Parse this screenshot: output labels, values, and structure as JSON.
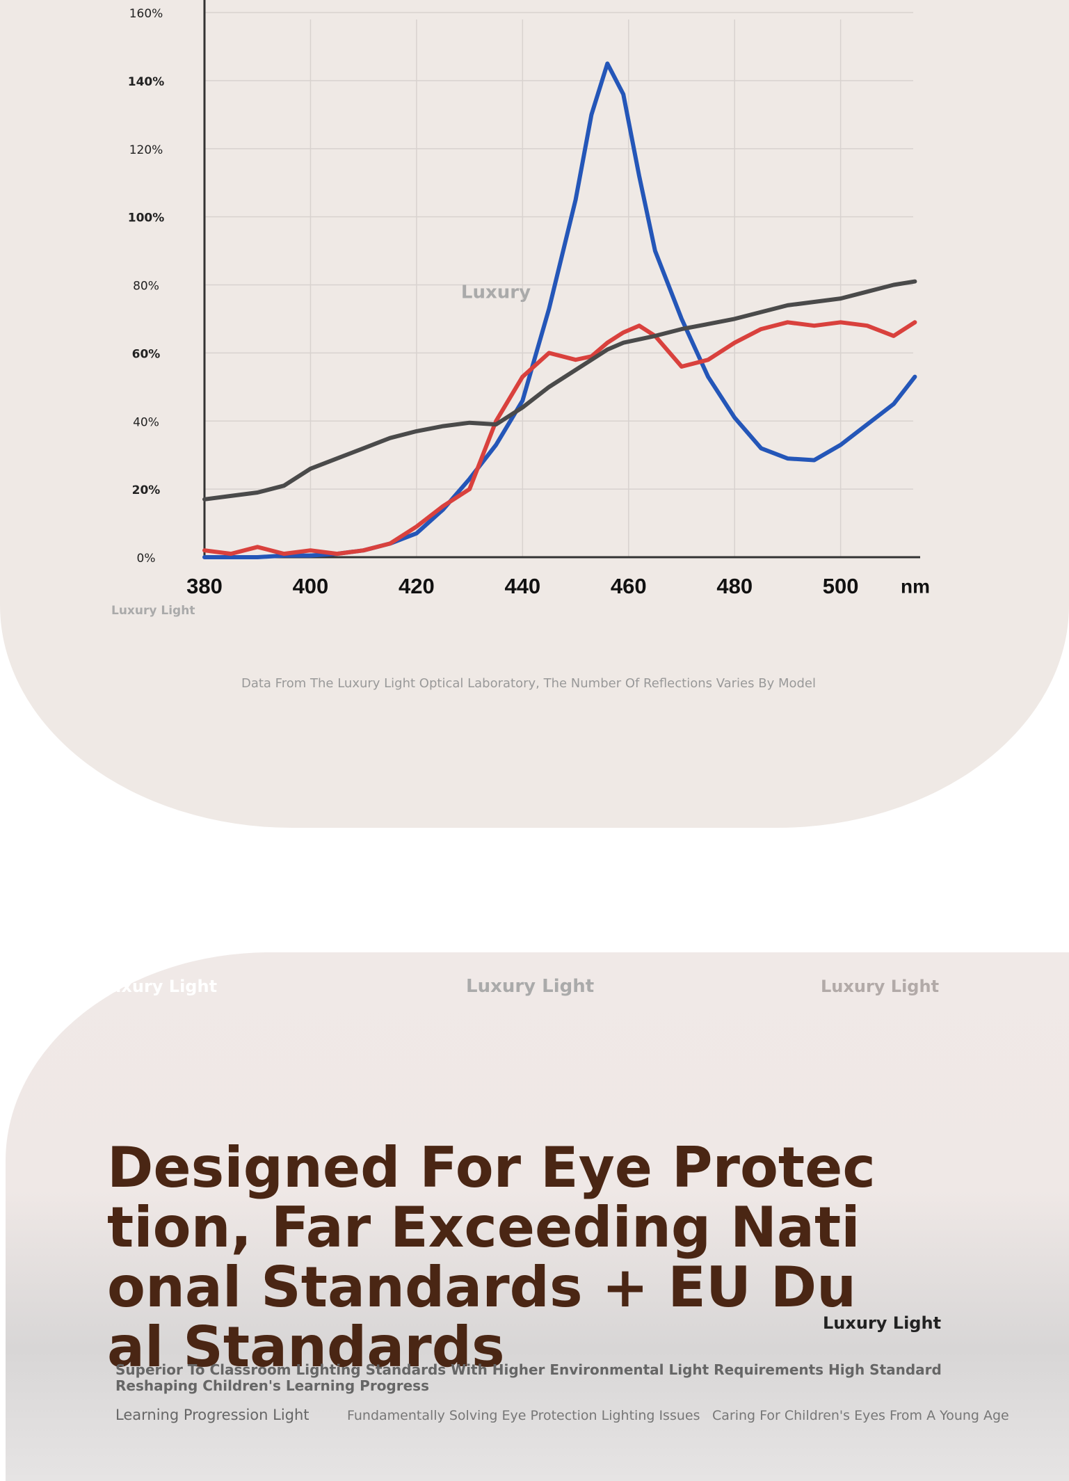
{
  "chart_data": {
    "type": "line",
    "x": [
      380,
      385,
      390,
      395,
      400,
      405,
      410,
      415,
      420,
      425,
      430,
      435,
      440,
      445,
      450,
      453,
      456,
      459,
      462,
      465,
      470,
      475,
      480,
      485,
      490,
      495,
      500,
      505,
      510,
      514
    ],
    "series": [
      {
        "color": "#2456b8",
        "values": [
          0,
          0,
          0,
          0.5,
          0.5,
          1,
          2,
          4,
          7,
          14,
          23,
          33,
          46,
          73,
          105,
          130,
          145,
          136,
          112,
          90,
          70,
          53,
          41,
          32,
          29,
          28.5,
          33,
          39,
          45,
          53
        ]
      },
      {
        "color": "#d9413d",
        "values": [
          2,
          1,
          3,
          1,
          2,
          1,
          2,
          4,
          9,
          15,
          20,
          40,
          53,
          60,
          58,
          59,
          63,
          66,
          68,
          65,
          56,
          58,
          63,
          67,
          69,
          68,
          69,
          68,
          65,
          69
        ]
      },
      {
        "color": "#4a4a4a",
        "values": [
          17,
          18,
          19,
          21,
          26,
          29,
          32,
          35,
          37,
          38.5,
          39.5,
          39,
          44,
          50,
          55,
          58,
          61,
          63,
          64,
          65,
          67,
          68.5,
          70,
          72,
          74,
          75,
          76,
          78,
          80,
          81
        ]
      }
    ],
    "xlim": [
      380,
      515
    ],
    "ylim": [
      0,
      160
    ],
    "xticks": [
      380,
      400,
      420,
      440,
      460,
      480,
      500
    ],
    "x_unit": "nm",
    "yticks": [
      {
        "value": 0,
        "label": "0%"
      },
      {
        "value": 20,
        "label": "20%"
      },
      {
        "value": 40,
        "label": "40%"
      },
      {
        "value": 60,
        "label": "60%"
      },
      {
        "value": 80,
        "label": "80%"
      },
      {
        "value": 100,
        "label": "100%"
      },
      {
        "value": 120,
        "label": "120%"
      },
      {
        "value": 140,
        "label": "140%"
      },
      {
        "value": 160,
        "label": "160%"
      }
    ],
    "grid": true,
    "watermark": "Luxury",
    "brand": "Luxury Light",
    "caption": "Data From The Luxury Light Optical Laboratory, The Number Of Reflections Varies By Model"
  },
  "section": {
    "brands": [
      "Luxury Light",
      "Luxury Light",
      "Luxury Light",
      "Luxury Light"
    ],
    "title": "Designed For Eye Protection, Far Exceeding National Standards + EU Dual Standards",
    "subtitle": "Superior To Classroom Lighting Standards With Higher Environmental Light Requirements High Standard Reshaping Children's Learning Progress",
    "features": [
      "Learning Progression Light",
      "Fundamentally Solving Eye Protection Lighting Issues",
      "Caring For Children's Eyes From A Young Age"
    ]
  }
}
